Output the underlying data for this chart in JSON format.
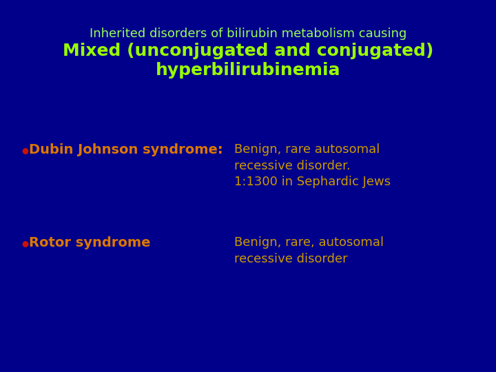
{
  "background_color": "#00008B",
  "title_line1": "Inherited disorders of bilirubin metabolism causing",
  "title_line2": "Mixed (unconjugated and conjugated)\nhyperbilirubinemia",
  "title_line1_color": "#99FF55",
  "title_line2_color": "#99FF00",
  "title_line1_fontsize": 13,
  "title_line2_fontsize": 18,
  "bullet_color": "#CC1100",
  "bullet1_label": "Dubin Johnson syndrome:",
  "bullet1_label_color": "#DD7700",
  "bullet1_desc": "Benign, rare autosomal\nrecessive disorder.\n1:1300 in Sephardic Jews",
  "bullet1_desc_color": "#CC9900",
  "bullet2_label": "Rotor syndrome",
  "bullet2_label_color": "#DD7700",
  "bullet2_desc": "Benign, rare, autosomal\nrecessive disorder",
  "bullet2_desc_color": "#CC9900",
  "label_fontsize": 14,
  "desc_fontsize": 13
}
